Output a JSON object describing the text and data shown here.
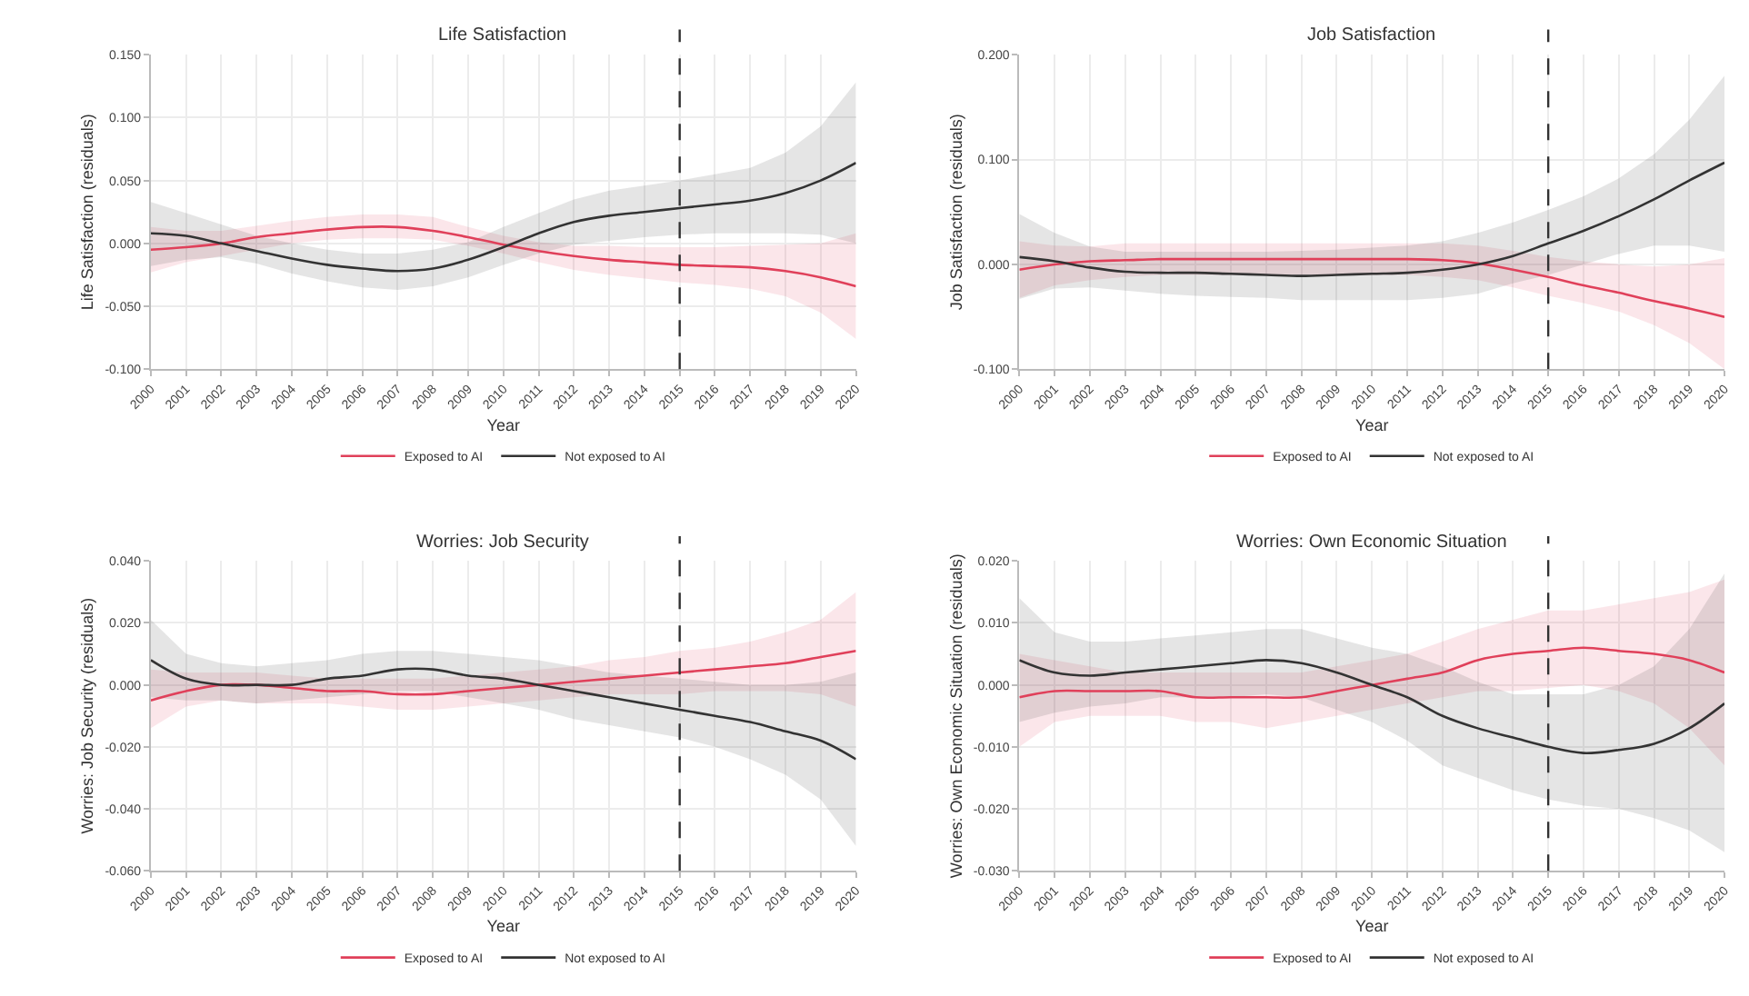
{
  "chart_data": [
    {
      "type": "line",
      "title": "Life Satisfaction",
      "xlabel": "Year",
      "ylabel": "Life Satisfaction (residuals)",
      "x": [
        2000,
        2001,
        2002,
        2003,
        2004,
        2005,
        2006,
        2007,
        2008,
        2009,
        2010,
        2011,
        2012,
        2013,
        2014,
        2015,
        2016,
        2017,
        2018,
        2019,
        2020
      ],
      "xlim": [
        2000,
        2020
      ],
      "xticks": [
        2000,
        2001,
        2002,
        2003,
        2004,
        2005,
        2006,
        2007,
        2008,
        2009,
        2010,
        2011,
        2012,
        2013,
        2014,
        2015,
        2016,
        2017,
        2018,
        2019,
        2020
      ],
      "ylim": [
        -0.1,
        0.15
      ],
      "yticks": [
        {
          "value": -0.1,
          "label": "-0.100"
        },
        {
          "value": -0.05,
          "label": "-0.050"
        },
        {
          "value": 0,
          "label": "0.000"
        },
        {
          "value": 0.05,
          "label": "0.050"
        },
        {
          "value": 0.1,
          "label": "0.100"
        },
        {
          "value": 0.15,
          "label": "0.150"
        }
      ],
      "series": [
        {
          "name": "Exposed to AI",
          "color": "#e0405a",
          "values": [
            -0.005,
            -0.003,
            0.0,
            0.005,
            0.008,
            0.011,
            0.013,
            0.013,
            0.01,
            0.005,
            -0.001,
            -0.006,
            -0.01,
            -0.013,
            -0.015,
            -0.017,
            -0.018,
            -0.019,
            -0.022,
            -0.027,
            -0.034
          ],
          "lower": [
            -0.023,
            -0.015,
            -0.01,
            -0.005,
            0.0,
            0.003,
            0.004,
            0.004,
            0.003,
            -0.002,
            -0.008,
            -0.015,
            -0.021,
            -0.025,
            -0.028,
            -0.031,
            -0.033,
            -0.036,
            -0.042,
            -0.055,
            -0.076
          ],
          "upper": [
            0.013,
            0.01,
            0.01,
            0.014,
            0.018,
            0.021,
            0.023,
            0.023,
            0.021,
            0.013,
            0.006,
            0.001,
            -0.002,
            -0.002,
            -0.003,
            -0.003,
            -0.003,
            -0.002,
            -0.001,
            0.0,
            0.008
          ]
        },
        {
          "name": "Not exposed to AI",
          "color": "#333333",
          "values": [
            0.008,
            0.006,
            0.0,
            -0.006,
            -0.012,
            -0.017,
            -0.02,
            -0.022,
            -0.02,
            -0.013,
            -0.003,
            0.008,
            0.017,
            0.022,
            0.025,
            0.028,
            0.031,
            0.034,
            0.04,
            0.05,
            0.064
          ],
          "lower": [
            -0.018,
            -0.013,
            -0.011,
            -0.016,
            -0.024,
            -0.03,
            -0.035,
            -0.037,
            -0.034,
            -0.027,
            -0.017,
            -0.008,
            -0.001,
            0.002,
            0.005,
            0.007,
            0.008,
            0.008,
            0.008,
            0.007,
            0.0
          ],
          "upper": [
            0.033,
            0.024,
            0.015,
            0.006,
            0.0,
            -0.005,
            -0.008,
            -0.008,
            -0.005,
            0.001,
            0.013,
            0.024,
            0.035,
            0.042,
            0.046,
            0.05,
            0.055,
            0.06,
            0.072,
            0.093,
            0.128
          ]
        }
      ],
      "ref_lines": [
        {
          "axis": "x",
          "value": 2015,
          "color": "#333333",
          "line_style": "dashed"
        }
      ],
      "grid": true,
      "legend": "bottom"
    },
    {
      "type": "line",
      "title": "Job Satisfaction",
      "xlabel": "Year",
      "ylabel": "Job Satisfaction (residuals)",
      "x": [
        2000,
        2001,
        2002,
        2003,
        2004,
        2005,
        2006,
        2007,
        2008,
        2009,
        2010,
        2011,
        2012,
        2013,
        2014,
        2015,
        2016,
        2017,
        2018,
        2019,
        2020
      ],
      "xlim": [
        2000,
        2020
      ],
      "xticks": [
        2000,
        2001,
        2002,
        2003,
        2004,
        2005,
        2006,
        2007,
        2008,
        2009,
        2010,
        2011,
        2012,
        2013,
        2014,
        2015,
        2016,
        2017,
        2018,
        2019,
        2020
      ],
      "ylim": [
        -0.1,
        0.2
      ],
      "yticks": [
        {
          "value": -0.1,
          "label": "-0.100"
        },
        {
          "value": 0,
          "label": "0.000"
        },
        {
          "value": 0.1,
          "label": "0.100"
        },
        {
          "value": 0.2,
          "label": "0.200"
        }
      ],
      "series": [
        {
          "name": "Exposed to AI",
          "color": "#e0405a",
          "values": [
            -0.005,
            0.0,
            0.003,
            0.004,
            0.005,
            0.005,
            0.005,
            0.005,
            0.005,
            0.005,
            0.005,
            0.005,
            0.004,
            0.001,
            -0.005,
            -0.012,
            -0.02,
            -0.027,
            -0.035,
            -0.042,
            -0.05
          ],
          "lower": [
            -0.032,
            -0.02,
            -0.015,
            -0.012,
            -0.01,
            -0.01,
            -0.01,
            -0.01,
            -0.01,
            -0.01,
            -0.01,
            -0.01,
            -0.012,
            -0.015,
            -0.022,
            -0.03,
            -0.037,
            -0.045,
            -0.058,
            -0.075,
            -0.1
          ],
          "upper": [
            0.022,
            0.018,
            0.017,
            0.02,
            0.02,
            0.02,
            0.02,
            0.02,
            0.02,
            0.02,
            0.02,
            0.02,
            0.02,
            0.018,
            0.013,
            0.007,
            0.003,
            0.0,
            -0.002,
            0.0,
            0.006
          ]
        },
        {
          "name": "Not exposed to AI",
          "color": "#333333",
          "values": [
            0.007,
            0.003,
            -0.003,
            -0.007,
            -0.008,
            -0.008,
            -0.009,
            -0.01,
            -0.011,
            -0.01,
            -0.009,
            -0.008,
            -0.005,
            0.0,
            0.008,
            0.02,
            0.032,
            0.046,
            0.062,
            0.08,
            0.097
          ],
          "lower": [
            -0.033,
            -0.023,
            -0.022,
            -0.025,
            -0.028,
            -0.03,
            -0.031,
            -0.032,
            -0.034,
            -0.034,
            -0.034,
            -0.034,
            -0.032,
            -0.028,
            -0.018,
            -0.01,
            0.0,
            0.01,
            0.018,
            0.018,
            0.012
          ],
          "upper": [
            0.048,
            0.03,
            0.017,
            0.012,
            0.012,
            0.012,
            0.012,
            0.012,
            0.013,
            0.014,
            0.016,
            0.018,
            0.022,
            0.03,
            0.04,
            0.052,
            0.065,
            0.082,
            0.105,
            0.138,
            0.18
          ]
        }
      ],
      "ref_lines": [
        {
          "axis": "x",
          "value": 2015,
          "color": "#333333",
          "line_style": "dashed"
        }
      ],
      "grid": true,
      "legend": "bottom"
    },
    {
      "type": "line",
      "title": "Worries: Job Security",
      "xlabel": "Year",
      "ylabel": "Worries: Job Security (residuals)",
      "x": [
        2000,
        2001,
        2002,
        2003,
        2004,
        2005,
        2006,
        2007,
        2008,
        2009,
        2010,
        2011,
        2012,
        2013,
        2014,
        2015,
        2016,
        2017,
        2018,
        2019,
        2020
      ],
      "xlim": [
        2000,
        2020
      ],
      "xticks": [
        2000,
        2001,
        2002,
        2003,
        2004,
        2005,
        2006,
        2007,
        2008,
        2009,
        2010,
        2011,
        2012,
        2013,
        2014,
        2015,
        2016,
        2017,
        2018,
        2019,
        2020
      ],
      "ylim": [
        -0.06,
        0.04
      ],
      "yticks": [
        {
          "value": -0.06,
          "label": "-0.060"
        },
        {
          "value": -0.04,
          "label": "-0.040"
        },
        {
          "value": -0.02,
          "label": "-0.020"
        },
        {
          "value": 0,
          "label": "0.000"
        },
        {
          "value": 0.02,
          "label": "0.020"
        },
        {
          "value": 0.04,
          "label": "0.040"
        }
      ],
      "series": [
        {
          "name": "Exposed to AI",
          "color": "#e0405a",
          "values": [
            -0.005,
            -0.002,
            0.0,
            0.0,
            -0.001,
            -0.002,
            -0.002,
            -0.003,
            -0.003,
            -0.002,
            -0.001,
            0.0,
            0.001,
            0.002,
            0.003,
            0.004,
            0.005,
            0.006,
            0.007,
            0.009,
            0.011
          ],
          "lower": [
            -0.014,
            -0.007,
            -0.005,
            -0.006,
            -0.006,
            -0.006,
            -0.007,
            -0.008,
            -0.008,
            -0.007,
            -0.006,
            -0.005,
            -0.004,
            -0.003,
            -0.003,
            -0.003,
            -0.002,
            -0.002,
            -0.002,
            -0.003,
            -0.007
          ],
          "upper": [
            0.005,
            0.004,
            0.004,
            0.004,
            0.003,
            0.002,
            0.002,
            0.002,
            0.002,
            0.003,
            0.004,
            0.005,
            0.006,
            0.008,
            0.009,
            0.011,
            0.012,
            0.014,
            0.017,
            0.021,
            0.03
          ]
        },
        {
          "name": "Not exposed to AI",
          "color": "#333333",
          "values": [
            0.008,
            0.002,
            0.0,
            0.0,
            0.0,
            0.002,
            0.003,
            0.005,
            0.005,
            0.003,
            0.002,
            0.0,
            -0.002,
            -0.004,
            -0.006,
            -0.008,
            -0.01,
            -0.012,
            -0.015,
            -0.018,
            -0.024
          ],
          "lower": [
            -0.004,
            -0.005,
            -0.005,
            -0.006,
            -0.005,
            -0.004,
            -0.003,
            -0.002,
            -0.002,
            -0.004,
            -0.006,
            -0.008,
            -0.011,
            -0.013,
            -0.015,
            -0.017,
            -0.02,
            -0.024,
            -0.029,
            -0.037,
            -0.052
          ],
          "upper": [
            0.021,
            0.01,
            0.007,
            0.006,
            0.007,
            0.008,
            0.01,
            0.011,
            0.011,
            0.01,
            0.009,
            0.008,
            0.006,
            0.004,
            0.003,
            0.002,
            0.001,
            0.0,
            0.0,
            0.001,
            0.004
          ]
        }
      ],
      "ref_lines": [
        {
          "axis": "x",
          "value": 2015,
          "color": "#333333",
          "line_style": "dashed"
        }
      ],
      "grid": true,
      "legend": "bottom"
    },
    {
      "type": "line",
      "title": "Worries: Own Economic Situation",
      "xlabel": "Year",
      "ylabel": "Worries: Own Economic Situation (residuals)",
      "x": [
        2000,
        2001,
        2002,
        2003,
        2004,
        2005,
        2006,
        2007,
        2008,
        2009,
        2010,
        2011,
        2012,
        2013,
        2014,
        2015,
        2016,
        2017,
        2018,
        2019,
        2020
      ],
      "xlim": [
        2000,
        2020
      ],
      "xticks": [
        2000,
        2001,
        2002,
        2003,
        2004,
        2005,
        2006,
        2007,
        2008,
        2009,
        2010,
        2011,
        2012,
        2013,
        2014,
        2015,
        2016,
        2017,
        2018,
        2019,
        2020
      ],
      "ylim": [
        -0.03,
        0.02
      ],
      "yticks": [
        {
          "value": -0.03,
          "label": "-0.030"
        },
        {
          "value": -0.02,
          "label": "-0.020"
        },
        {
          "value": -0.01,
          "label": "-0.010"
        },
        {
          "value": 0,
          "label": "0.000"
        },
        {
          "value": 0.01,
          "label": "0.010"
        },
        {
          "value": 0.02,
          "label": "0.020"
        }
      ],
      "series": [
        {
          "name": "Exposed to AI",
          "color": "#e0405a",
          "values": [
            -0.002,
            -0.001,
            -0.001,
            -0.001,
            -0.001,
            -0.002,
            -0.002,
            -0.002,
            -0.002,
            -0.001,
            0.0,
            0.001,
            0.002,
            0.004,
            0.005,
            0.0055,
            0.006,
            0.0055,
            0.005,
            0.004,
            0.002
          ],
          "lower": [
            -0.01,
            -0.006,
            -0.005,
            -0.005,
            -0.005,
            -0.006,
            -0.006,
            -0.007,
            -0.006,
            -0.005,
            -0.004,
            -0.003,
            -0.002,
            -0.001,
            -0.001,
            -0.0005,
            0.0,
            -0.001,
            -0.003,
            -0.007,
            -0.013
          ],
          "upper": [
            0.005,
            0.004,
            0.003,
            0.002,
            0.002,
            0.002,
            0.002,
            0.002,
            0.002,
            0.003,
            0.004,
            0.005,
            0.007,
            0.009,
            0.0105,
            0.012,
            0.012,
            0.013,
            0.014,
            0.015,
            0.017
          ]
        },
        {
          "name": "Not exposed to AI",
          "color": "#333333",
          "values": [
            0.004,
            0.002,
            0.0015,
            0.002,
            0.0025,
            0.003,
            0.0035,
            0.004,
            0.0035,
            0.002,
            0.0,
            -0.002,
            -0.005,
            -0.007,
            -0.0085,
            -0.01,
            -0.011,
            -0.0105,
            -0.0095,
            -0.007,
            -0.003
          ],
          "lower": [
            -0.006,
            -0.0045,
            -0.0035,
            -0.003,
            -0.002,
            -0.002,
            -0.002,
            -0.0015,
            -0.002,
            -0.004,
            -0.006,
            -0.009,
            -0.013,
            -0.015,
            -0.017,
            -0.0185,
            -0.0195,
            -0.02,
            -0.0215,
            -0.0235,
            -0.027
          ],
          "upper": [
            0.014,
            0.0085,
            0.007,
            0.007,
            0.0075,
            0.008,
            0.0085,
            0.009,
            0.009,
            0.0075,
            0.006,
            0.005,
            0.003,
            0.0005,
            -0.0015,
            -0.0015,
            -0.0015,
            0.0,
            0.003,
            0.009,
            0.018
          ]
        }
      ],
      "ref_lines": [
        {
          "axis": "x",
          "value": 2015,
          "color": "#333333",
          "line_style": "dashed"
        }
      ],
      "grid": true,
      "legend": "bottom"
    }
  ]
}
